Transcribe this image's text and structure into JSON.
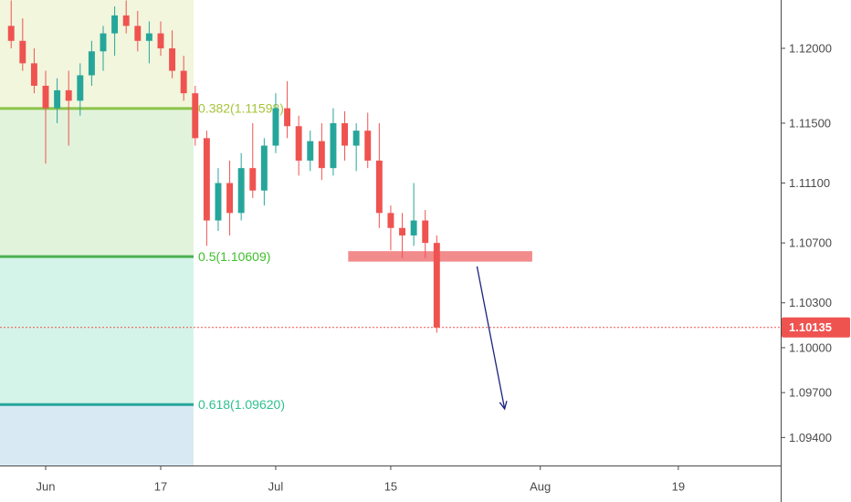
{
  "chart_data": {
    "type": "candlestick",
    "x": [
      -3,
      -2,
      -1,
      0,
      1,
      2,
      3,
      4,
      5,
      6,
      7,
      8,
      9,
      10,
      11,
      12,
      13,
      14,
      15,
      16,
      17,
      18,
      19,
      20,
      21,
      22,
      23,
      24,
      25,
      26,
      27,
      28,
      29,
      30,
      31,
      32,
      33,
      34
    ],
    "open": [
      1.1215,
      1.1205,
      1.119,
      1.1175,
      1.116,
      1.1172,
      1.1165,
      1.1182,
      1.1198,
      1.121,
      1.1222,
      1.1215,
      1.1205,
      1.121,
      1.12,
      1.1185,
      1.117,
      1.114,
      1.1085,
      1.111,
      1.109,
      1.112,
      1.1105,
      1.1135,
      1.116,
      1.1148,
      1.1125,
      1.1138,
      1.112,
      1.115,
      1.1135,
      1.1145,
      1.1125,
      1.109,
      1.108,
      1.1075,
      1.1085,
      1.107
    ],
    "high": [
      1.1232,
      1.122,
      1.12,
      1.1185,
      1.118,
      1.1185,
      1.119,
      1.1205,
      1.1215,
      1.1228,
      1.1232,
      1.1225,
      1.1218,
      1.1218,
      1.1212,
      1.1195,
      1.1175,
      1.1145,
      1.112,
      1.1125,
      1.113,
      1.115,
      1.114,
      1.117,
      1.1178,
      1.1155,
      1.1145,
      1.115,
      1.116,
      1.1158,
      1.115,
      1.1157,
      1.115,
      1.1095,
      1.109,
      1.111,
      1.1092,
      1.1075
    ],
    "low": [
      1.12,
      1.1185,
      1.117,
      1.1123,
      1.115,
      1.1135,
      1.1155,
      1.1175,
      1.1185,
      1.1195,
      1.121,
      1.1198,
      1.119,
      1.1195,
      1.118,
      1.1165,
      1.1135,
      1.1068,
      1.1078,
      1.1075,
      1.1085,
      1.11,
      1.1095,
      1.113,
      1.114,
      1.1115,
      1.1118,
      1.1112,
      1.1115,
      1.1125,
      1.1118,
      1.112,
      1.108,
      1.1065,
      1.106,
      1.1068,
      1.106,
      1.101
    ],
    "close": [
      1.1205,
      1.119,
      1.1175,
      1.116,
      1.1172,
      1.1165,
      1.1182,
      1.1198,
      1.121,
      1.1222,
      1.1215,
      1.1205,
      1.121,
      1.12,
      1.1185,
      1.117,
      1.114,
      1.1085,
      1.111,
      1.109,
      1.112,
      1.1105,
      1.1135,
      1.116,
      1.1148,
      1.1125,
      1.1138,
      1.112,
      1.115,
      1.1135,
      1.1145,
      1.1125,
      1.109,
      1.108,
      1.1075,
      1.1085,
      1.107,
      1.10135
    ],
    "up_color": "#26a69a",
    "down_color": "#ef5350",
    "xlim": [
      -3.97,
      63.9
    ],
    "ylim": [
      1.09213,
      1.12323
    ],
    "xticks": [
      {
        "value": 0,
        "label": "Jun"
      },
      {
        "value": 10,
        "label": "17"
      },
      {
        "value": 20,
        "label": "Jul"
      },
      {
        "value": 30,
        "label": "15"
      },
      {
        "value": 43,
        "label": "Aug"
      },
      {
        "value": 55,
        "label": "19"
      }
    ],
    "yticks": [
      {
        "value": 1.12,
        "label": "1.12000"
      },
      {
        "value": 1.115,
        "label": "1.11500"
      },
      {
        "value": 1.111,
        "label": "1.11100"
      },
      {
        "value": 1.107,
        "label": "1.10700"
      },
      {
        "value": 1.103,
        "label": "1.10300"
      },
      {
        "value": 1.1,
        "label": "1.10000"
      },
      {
        "value": 1.097,
        "label": "1.09700"
      },
      {
        "value": 1.094,
        "label": "1.09400"
      }
    ],
    "fib": {
      "x": [
        -3.97,
        12.86
      ],
      "levels": [
        {
          "label": "0.382(1.11598)",
          "value": 1.11598,
          "color": "#8bc34a",
          "text_color": "#a5c43a",
          "fill_above": "#f1f6dd"
        },
        {
          "label": "0.5(1.10609)",
          "value": 1.10609,
          "color": "#4caf50",
          "text_color": "#3fbf2c",
          "fill_above": "#e2f3dc"
        },
        {
          "label": "0.618(1.09620)",
          "value": 1.0962,
          "color": "#26a69a",
          "text_color": "#2ec08f",
          "fill_above": "#d5f4e9"
        }
      ],
      "fill_below": "#d9e9f4"
    },
    "last_price": 1.10135,
    "last_price_color": "#ef5350",
    "zone": {
      "x": [
        26.3,
        42.3
      ],
      "y": [
        1.10575,
        1.10645
      ],
      "color": "#f28b8b"
    },
    "arrow": {
      "x": [
        37.5,
        39.9
      ],
      "y": [
        1.10543,
        1.09591
      ],
      "color": "#1a237e"
    }
  }
}
